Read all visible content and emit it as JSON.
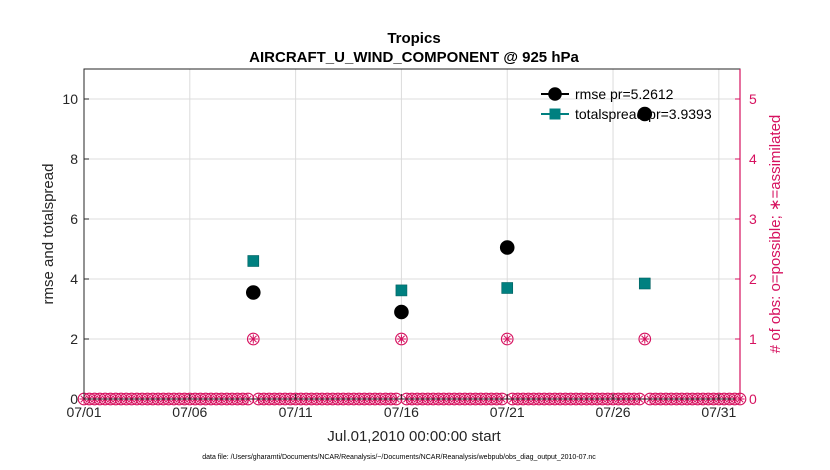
{
  "chart_data": {
    "type": "scatter",
    "title": "Tropics",
    "subtitle": "AIRCRAFT_U_WIND_COMPONENT @ 925 hPa",
    "xlabel": "Jul.01,2010 00:00:00 start",
    "ylabel_left": "rmse and totalspread",
    "ylabel_right": "# of obs: o=possible; ∗=assimilated",
    "footer": "data file: /Users/gharamti/Documents/NCAR/Reanalysis/~/Documents/NCAR/Reanalysis/webpub/obs_diag_output_2010-07.nc",
    "xlim": [
      1,
      32
    ],
    "ylim_left": [
      0,
      11
    ],
    "ylim_right": [
      0,
      5.5
    ],
    "x_ticks": [
      1,
      6,
      11,
      16,
      21,
      26,
      31
    ],
    "x_tick_labels": [
      "07/01",
      "07/06",
      "07/11",
      "07/16",
      "07/21",
      "07/26",
      "07/31"
    ],
    "y_left_ticks": [
      0,
      2,
      4,
      6,
      8,
      10
    ],
    "y_left_tick_labels": [
      "0",
      "2",
      "4",
      "6",
      "8",
      "10"
    ],
    "y_right_ticks": [
      0,
      1,
      2,
      3,
      4,
      5
    ],
    "y_right_tick_labels": [
      "0",
      "1",
      "2",
      "3",
      "4",
      "5"
    ],
    "grid": true,
    "legend_position": "top-right",
    "series": [
      {
        "name": "rmse",
        "legend": "rmse pr=5.2612",
        "color": "#000000",
        "marker": "circle",
        "x": [
          9.0,
          16.0,
          21.0,
          27.5
        ],
        "y": [
          3.55,
          2.9,
          5.05,
          9.5
        ]
      },
      {
        "name": "totalspread",
        "legend": "totalspread pr=3.9393",
        "color": "#008080",
        "marker": "square",
        "x": [
          9.0,
          16.0,
          21.0,
          27.5
        ],
        "y": [
          4.6,
          3.62,
          3.7,
          3.85
        ]
      }
    ],
    "obs_count": {
      "color": "#d6115f",
      "x_start": 1.0,
      "x_end": 32.0,
      "x_step": 0.25,
      "nonzero_x": [
        9.0,
        16.0,
        21.0,
        27.5
      ],
      "nonzero_value": 1
    }
  }
}
